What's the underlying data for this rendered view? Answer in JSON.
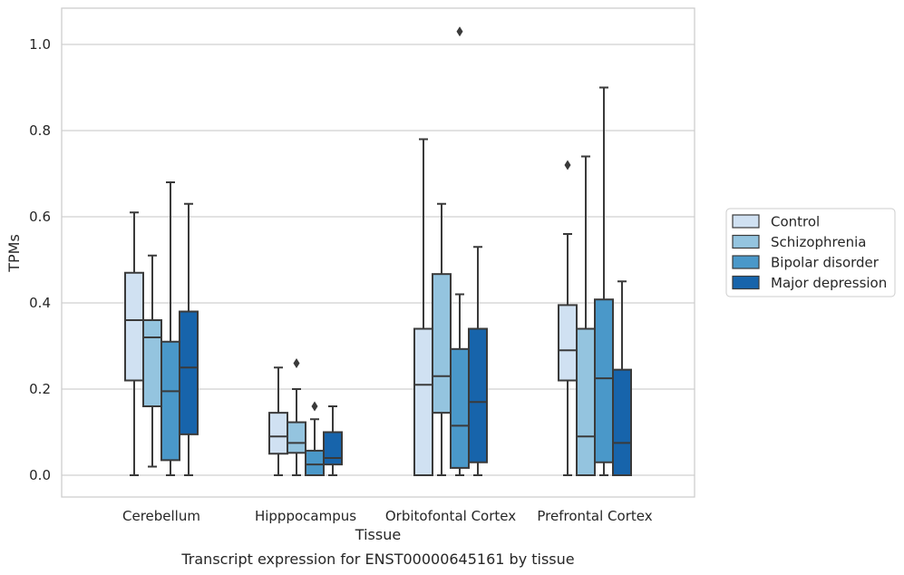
{
  "chart_data": {
    "type": "boxplot",
    "xlabel": "Tissue",
    "ylabel": "TPMs",
    "caption": "Transcript expression for ENST00000645161 by tissue",
    "categories": [
      "Cerebellum",
      "Hipppocampus",
      "Orbitofontal Cortex",
      "Prefrontal Cortex"
    ],
    "ylim": [
      -0.05,
      1.08
    ],
    "yticks": [
      0.0,
      0.2,
      0.4,
      0.6,
      0.8,
      1.0
    ],
    "ytick_labels": [
      "0.0",
      "0.2",
      "0.4",
      "0.6",
      "0.8",
      "1.0"
    ],
    "grid": "horizontal",
    "legend_position": "right",
    "series": [
      {
        "name": "Control",
        "color": "#d0e1f2",
        "boxes": [
          {
            "whisker_low": 0.0,
            "q1": 0.22,
            "median": 0.36,
            "q3": 0.47,
            "whisker_high": 0.61,
            "outliers": []
          },
          {
            "whisker_low": 0.0,
            "q1": 0.05,
            "median": 0.09,
            "q3": 0.145,
            "whisker_high": 0.25,
            "outliers": []
          },
          {
            "whisker_low": 0.0,
            "q1": 0.0,
            "median": 0.21,
            "q3": 0.34,
            "whisker_high": 0.78,
            "outliers": []
          },
          {
            "whisker_low": 0.0,
            "q1": 0.22,
            "median": 0.29,
            "q3": 0.395,
            "whisker_high": 0.56,
            "outliers": [
              0.72
            ]
          }
        ]
      },
      {
        "name": "Schizophrenia",
        "color": "#94c4df",
        "boxes": [
          {
            "whisker_low": 0.02,
            "q1": 0.16,
            "median": 0.32,
            "q3": 0.36,
            "whisker_high": 0.51,
            "outliers": []
          },
          {
            "whisker_low": 0.0,
            "q1": 0.052,
            "median": 0.075,
            "q3": 0.123,
            "whisker_high": 0.2,
            "outliers": [
              0.26
            ]
          },
          {
            "whisker_low": 0.0,
            "q1": 0.145,
            "median": 0.23,
            "q3": 0.467,
            "whisker_high": 0.63,
            "outliers": []
          },
          {
            "whisker_low": 0.0,
            "q1": 0.0,
            "median": 0.09,
            "q3": 0.34,
            "whisker_high": 0.74,
            "outliers": []
          }
        ]
      },
      {
        "name": "Bipolar disorder",
        "color": "#4a98c9",
        "boxes": [
          {
            "whisker_low": 0.0,
            "q1": 0.035,
            "median": 0.195,
            "q3": 0.31,
            "whisker_high": 0.68,
            "outliers": []
          },
          {
            "whisker_low": 0.0,
            "q1": 0.0,
            "median": 0.025,
            "q3": 0.057,
            "whisker_high": 0.13,
            "outliers": [
              0.16
            ]
          },
          {
            "whisker_low": 0.0,
            "q1": 0.017,
            "median": 0.115,
            "q3": 0.293,
            "whisker_high": 0.42,
            "outliers": [
              1.03
            ]
          },
          {
            "whisker_low": 0.0,
            "q1": 0.03,
            "median": 0.225,
            "q3": 0.408,
            "whisker_high": 0.9,
            "outliers": []
          }
        ]
      },
      {
        "name": "Major depression",
        "color": "#1764ab",
        "boxes": [
          {
            "whisker_low": 0.0,
            "q1": 0.095,
            "median": 0.25,
            "q3": 0.38,
            "whisker_high": 0.63,
            "outliers": []
          },
          {
            "whisker_low": 0.0,
            "q1": 0.025,
            "median": 0.04,
            "q3": 0.1,
            "whisker_high": 0.16,
            "outliers": []
          },
          {
            "whisker_low": 0.0,
            "q1": 0.03,
            "median": 0.17,
            "q3": 0.34,
            "whisker_high": 0.53,
            "outliers": []
          },
          {
            "whisker_low": 0.0,
            "q1": 0.0,
            "median": 0.075,
            "q3": 0.245,
            "whisker_high": 0.45,
            "outliers": []
          }
        ]
      }
    ]
  }
}
